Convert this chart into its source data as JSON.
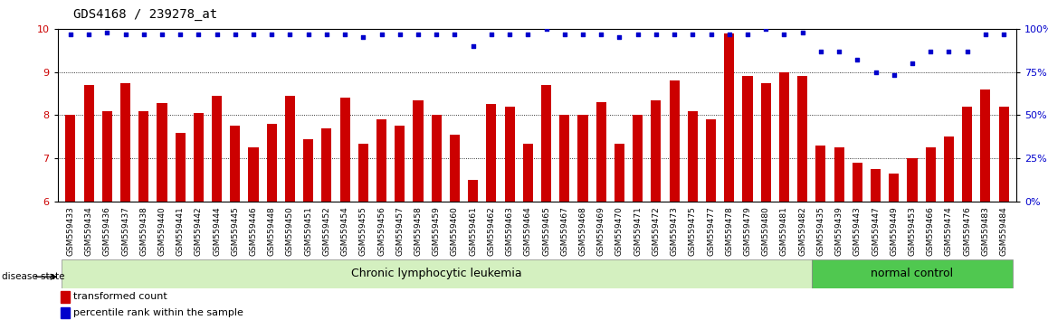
{
  "title": "GDS4168 / 239278_at",
  "samples": [
    "GSM559433",
    "GSM559434",
    "GSM559436",
    "GSM559437",
    "GSM559438",
    "GSM559440",
    "GSM559441",
    "GSM559442",
    "GSM559444",
    "GSM559445",
    "GSM559446",
    "GSM559448",
    "GSM559450",
    "GSM559451",
    "GSM559452",
    "GSM559454",
    "GSM559455",
    "GSM559456",
    "GSM559457",
    "GSM559458",
    "GSM559459",
    "GSM559460",
    "GSM559461",
    "GSM559462",
    "GSM559463",
    "GSM559464",
    "GSM559465",
    "GSM559467",
    "GSM559468",
    "GSM559469",
    "GSM559470",
    "GSM559471",
    "GSM559472",
    "GSM559473",
    "GSM559475",
    "GSM559477",
    "GSM559478",
    "GSM559479",
    "GSM559480",
    "GSM559481",
    "GSM559482",
    "GSM559435",
    "GSM559439",
    "GSM559443",
    "GSM559447",
    "GSM559449",
    "GSM559453",
    "GSM559466",
    "GSM559474",
    "GSM559476",
    "GSM559483",
    "GSM559484"
  ],
  "transformed_count": [
    8.0,
    8.7,
    8.1,
    8.75,
    8.1,
    8.28,
    7.6,
    8.05,
    8.45,
    7.75,
    7.25,
    7.8,
    8.45,
    7.45,
    7.7,
    8.4,
    7.35,
    7.9,
    7.75,
    8.35,
    8.0,
    7.55,
    6.5,
    8.25,
    8.2,
    7.35,
    8.7,
    8.0,
    8.0,
    8.3,
    7.35,
    8.0,
    8.35,
    8.8,
    8.1,
    7.9,
    9.9,
    8.9,
    8.75,
    9.0,
    8.9,
    7.3,
    7.25,
    6.9,
    6.75,
    6.65,
    7.0,
    7.25,
    7.5,
    8.2,
    8.6,
    8.2
  ],
  "percentile_rank": [
    97,
    97,
    98,
    97,
    97,
    97,
    97,
    97,
    97,
    97,
    97,
    97,
    97,
    97,
    97,
    97,
    95,
    97,
    97,
    97,
    97,
    97,
    90,
    97,
    97,
    97,
    100,
    97,
    97,
    97,
    95,
    97,
    97,
    97,
    97,
    97,
    97,
    97,
    100,
    97,
    98,
    87,
    87,
    82,
    75,
    73,
    80,
    87,
    87,
    87,
    97,
    97
  ],
  "group_labels": [
    "Chronic lymphocytic leukemia",
    "normal control"
  ],
  "group_split": 41,
  "group_colors": [
    "#d4f0c0",
    "#50c850"
  ],
  "bar_color": "#cc0000",
  "dot_color": "#0000cc",
  "ylim_left": [
    6,
    10
  ],
  "ylim_right": [
    0,
    100
  ],
  "yticks_left": [
    6,
    7,
    8,
    9,
    10
  ],
  "yticks_right": [
    0,
    25,
    50,
    75,
    100
  ],
  "title_fontsize": 10,
  "tick_label_fontsize": 6.5
}
